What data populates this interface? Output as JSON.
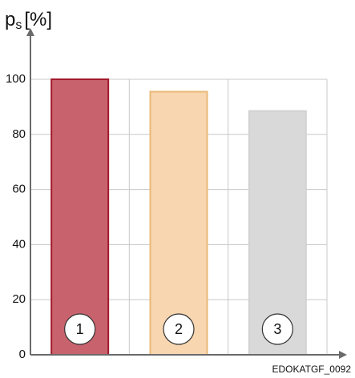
{
  "chart_data": {
    "type": "bar",
    "ylabel": {
      "symbol": "p",
      "subscript": "s",
      "unit": "[%]"
    },
    "categories": [
      "1",
      "2",
      "3"
    ],
    "values": [
      100,
      95.5,
      88.5
    ],
    "colors": [
      "#c8636e",
      "#f7d6b0",
      "#d9d9d9"
    ],
    "edge_colors": [
      "#a3182b",
      "#eab877",
      "#d2d2d2"
    ],
    "ylim": [
      0,
      100
    ],
    "yticks": [
      0,
      20,
      40,
      60,
      80,
      100
    ],
    "grid": true,
    "footnote": "EDOKATGF_0092"
  }
}
